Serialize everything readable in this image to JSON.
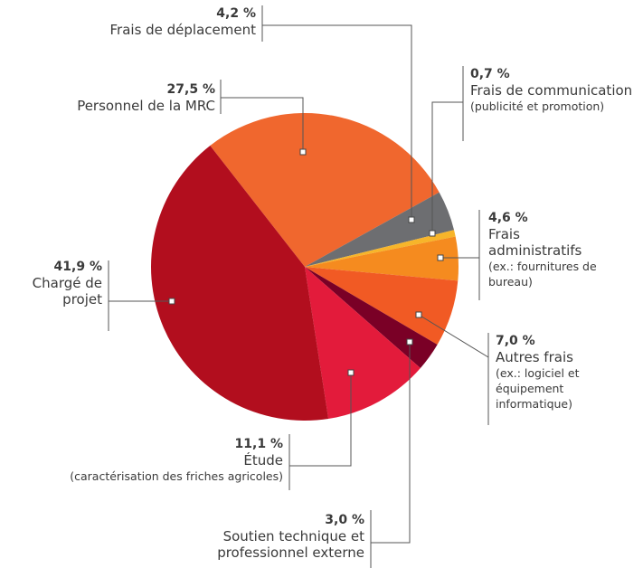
{
  "chart_data": {
    "type": "pie",
    "categories": [
      "Personnel de la MRC",
      "Frais de déplacement",
      "Frais de communication",
      "Frais administratifs",
      "Autres frais",
      "Soutien technique et professionnel externe",
      "Étude",
      "Chargé de projet"
    ],
    "values": [
      27.5,
      4.2,
      0.7,
      4.6,
      7.0,
      3.0,
      11.1,
      41.9
    ],
    "value_labels": [
      "27,5 %",
      "4,2 %",
      "0,7 %",
      "4,6 %",
      "7,0 %",
      "3,0 %",
      "11,1 %",
      "41,9 %"
    ],
    "details": [
      null,
      null,
      "(publicité et promotion)",
      "(ex.: fournitures de bureau)",
      "(ex.: logiciel et équipement informatique)",
      null,
      "(caractérisation des friches agricoles)",
      null
    ],
    "colors": [
      "#f0672e",
      "#6d6e71",
      "#f7b52a",
      "#f58b1f",
      "#f15a24",
      "#7a0026",
      "#e31b3b",
      "#b20e1e"
    ]
  }
}
